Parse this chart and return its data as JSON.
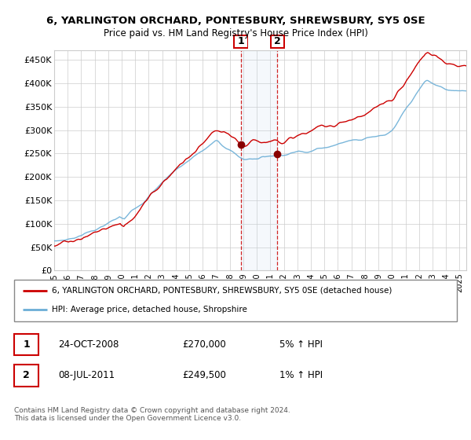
{
  "title": "6, YARLINGTON ORCHARD, PONTESBURY, SHREWSBURY, SY5 0SE",
  "subtitle": "Price paid vs. HM Land Registry's House Price Index (HPI)",
  "ylim": [
    0,
    470000
  ],
  "yticks": [
    0,
    50000,
    100000,
    150000,
    200000,
    250000,
    300000,
    350000,
    400000,
    450000
  ],
  "ytick_labels": [
    "£0",
    "£50K",
    "£100K",
    "£150K",
    "£200K",
    "£250K",
    "£300K",
    "£350K",
    "£400K",
    "£450K"
  ],
  "hpi_color": "#6baed6",
  "price_color": "#cc0000",
  "background_color": "#ffffff",
  "grid_color": "#cccccc",
  "sale1_x": 2008.82,
  "sale1_y": 270000,
  "sale1_label": "1",
  "sale1_date": "24-OCT-2008",
  "sale1_price": "£270,000",
  "sale1_hpi": "5% ↑ HPI",
  "sale2_x": 2011.52,
  "sale2_y": 249500,
  "sale2_label": "2",
  "sale2_date": "08-JUL-2011",
  "sale2_price": "£249,500",
  "sale2_hpi": "1% ↑ HPI",
  "shade_x1": 2008.82,
  "shade_x2": 2011.52,
  "legend_line1": "6, YARLINGTON ORCHARD, PONTESBURY, SHREWSBURY, SY5 0SE (detached house)",
  "legend_line2": "HPI: Average price, detached house, Shropshire",
  "footnote": "Contains HM Land Registry data © Crown copyright and database right 2024.\nThis data is licensed under the Open Government Licence v3.0.",
  "xlim_left": 1995,
  "xlim_right": 2025.5,
  "xstart": 1995,
  "xend": 2025
}
